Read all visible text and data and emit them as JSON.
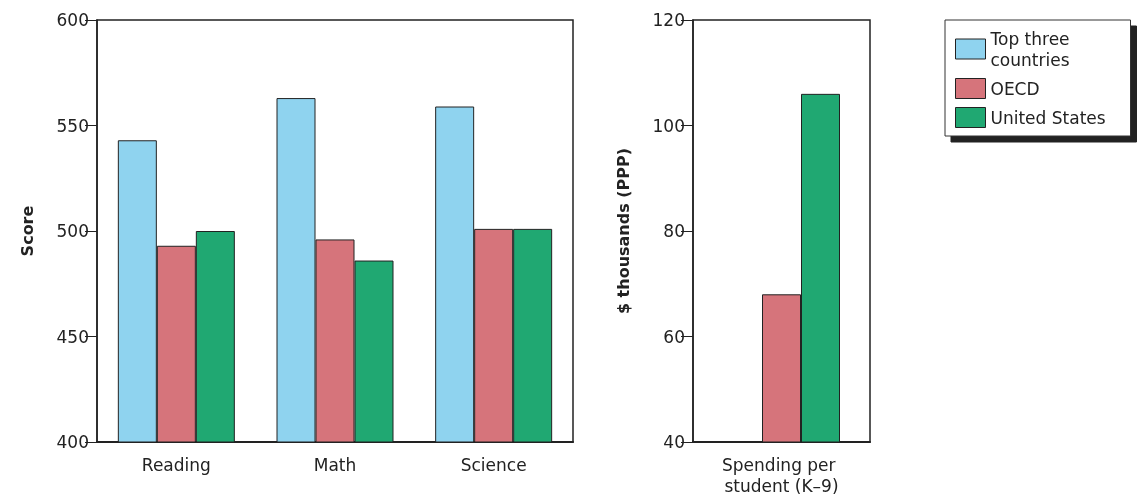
{
  "chart_data": [
    {
      "type": "bar",
      "ylabel": "Score",
      "categories": [
        "Reading",
        "Math",
        "Science"
      ],
      "ylim": [
        400,
        600
      ],
      "yticks": [
        400,
        450,
        500,
        550,
        600
      ],
      "grid": false,
      "legend": "right",
      "series": [
        {
          "name": "Top three countries",
          "color": "#8fd3ef",
          "values": [
            543,
            563,
            559
          ]
        },
        {
          "name": "OECD",
          "color": "#d6747b",
          "values": [
            493,
            496,
            501
          ]
        },
        {
          "name": "United States",
          "color": "#20a872",
          "values": [
            500,
            486,
            501
          ]
        }
      ]
    },
    {
      "type": "bar",
      "ylabel": "$ thousands (PPP)",
      "categories": [
        "Spending per student (K–9)"
      ],
      "ylim": [
        40,
        120
      ],
      "yticks": [
        40,
        60,
        80,
        100,
        120
      ],
      "grid": false,
      "series": [
        {
          "color": "#8fd3ef",
          "values": [
            null
          ]
        },
        {
          "color": "#d6747b",
          "values": [
            68
          ]
        },
        {
          "color": "#20a872",
          "values": [
            106
          ]
        }
      ]
    }
  ]
}
